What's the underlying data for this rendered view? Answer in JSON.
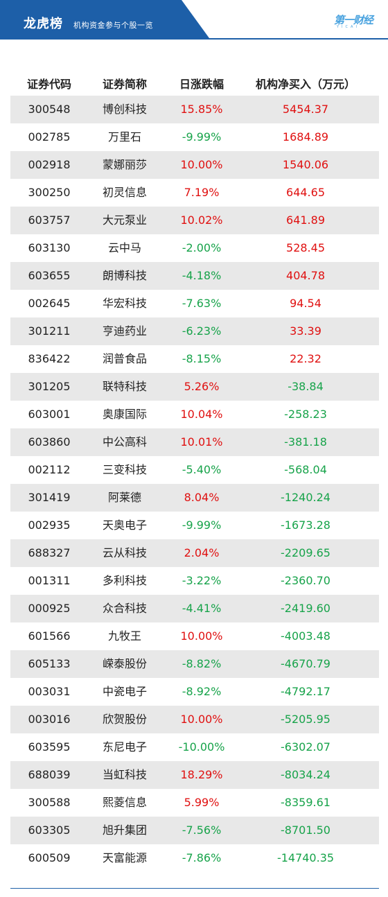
{
  "header": {
    "title": "龙虎榜",
    "subtitle": "机构资金参与个股一览",
    "logo_text": "第一财经",
    "logo_sub": "YICAI",
    "colors": {
      "banner": "#1d5fa8",
      "positive": "#e01010",
      "negative": "#17a34a",
      "row_shade": "#e8e8e8"
    }
  },
  "table": {
    "columns": [
      "证券代码",
      "证券简称",
      "日涨跌幅",
      "机构净买入（万元）"
    ],
    "rows": [
      {
        "code": "300548",
        "name": "博创科技",
        "change": "15.85%",
        "net": "5454.37"
      },
      {
        "code": "002785",
        "name": "万里石",
        "change": "-9.99%",
        "net": "1684.89"
      },
      {
        "code": "002918",
        "name": "蒙娜丽莎",
        "change": "10.00%",
        "net": "1540.06"
      },
      {
        "code": "300250",
        "name": "初灵信息",
        "change": "7.19%",
        "net": "644.65"
      },
      {
        "code": "603757",
        "name": "大元泵业",
        "change": "10.02%",
        "net": "641.89"
      },
      {
        "code": "603130",
        "name": "云中马",
        "change": "-2.00%",
        "net": "528.45"
      },
      {
        "code": "603655",
        "name": "朗博科技",
        "change": "-4.18%",
        "net": "404.78"
      },
      {
        "code": "002645",
        "name": "华宏科技",
        "change": "-7.63%",
        "net": "94.54"
      },
      {
        "code": "301211",
        "name": "亨迪药业",
        "change": "-6.23%",
        "net": "33.39"
      },
      {
        "code": "836422",
        "name": "润普食品",
        "change": "-8.15%",
        "net": "22.32"
      },
      {
        "code": "301205",
        "name": "联特科技",
        "change": "5.26%",
        "net": "-38.84"
      },
      {
        "code": "603001",
        "name": "奥康国际",
        "change": "10.04%",
        "net": "-258.23"
      },
      {
        "code": "603860",
        "name": "中公高科",
        "change": "10.01%",
        "net": "-381.18"
      },
      {
        "code": "002112",
        "name": "三变科技",
        "change": "-5.40%",
        "net": "-568.04"
      },
      {
        "code": "301419",
        "name": "阿莱德",
        "change": "8.04%",
        "net": "-1240.24"
      },
      {
        "code": "002935",
        "name": "天奥电子",
        "change": "-9.99%",
        "net": "-1673.28"
      },
      {
        "code": "688327",
        "name": "云从科技",
        "change": "2.04%",
        "net": "-2209.65"
      },
      {
        "code": "001311",
        "name": "多利科技",
        "change": "-3.22%",
        "net": "-2360.70"
      },
      {
        "code": "000925",
        "name": "众合科技",
        "change": "-4.41%",
        "net": "-2419.60"
      },
      {
        "code": "601566",
        "name": "九牧王",
        "change": "10.00%",
        "net": "-4003.48"
      },
      {
        "code": "605133",
        "name": "嵘泰股份",
        "change": "-8.82%",
        "net": "-4670.79"
      },
      {
        "code": "003031",
        "name": "中瓷电子",
        "change": "-8.92%",
        "net": "-4792.17"
      },
      {
        "code": "003016",
        "name": "欣贺股份",
        "change": "10.00%",
        "net": "-5205.95"
      },
      {
        "code": "603595",
        "name": "东尼电子",
        "change": "-10.00%",
        "net": "-6302.07"
      },
      {
        "code": "688039",
        "name": "当虹科技",
        "change": "18.29%",
        "net": "-8034.24"
      },
      {
        "code": "300588",
        "name": "熙菱信息",
        "change": "5.99%",
        "net": "-8359.61"
      },
      {
        "code": "603305",
        "name": "旭升集团",
        "change": "-7.56%",
        "net": "-8701.50"
      },
      {
        "code": "600509",
        "name": "天富能源",
        "change": "-7.86%",
        "net": "-14740.35"
      }
    ]
  }
}
